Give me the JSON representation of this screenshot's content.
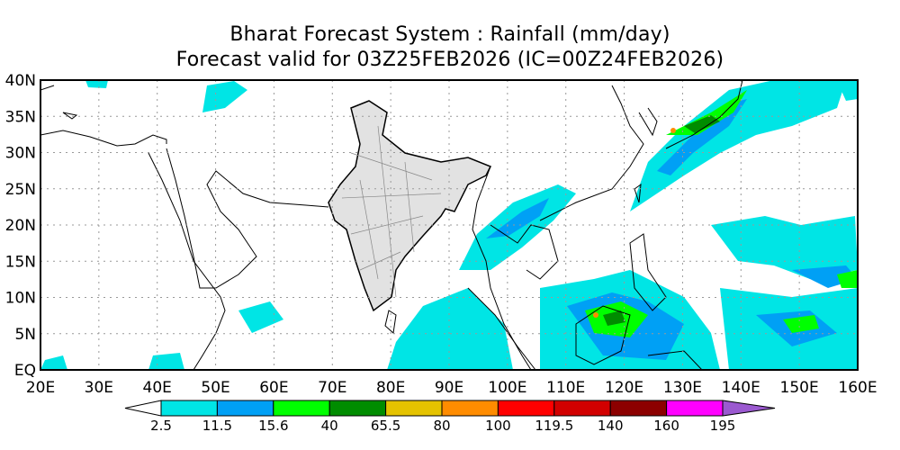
{
  "header": {
    "title": "Bharat Forecast System : Rainfall (mm/day)",
    "subtitle": "Forecast valid for 03Z25FEB2026 (IC=00Z24FEB2026)"
  },
  "map": {
    "lat_labels": [
      "40N",
      "35N",
      "30N",
      "25N",
      "20N",
      "15N",
      "10N",
      "5N",
      "EQ"
    ],
    "lon_labels": [
      "20E",
      "30E",
      "40E",
      "50E",
      "60E",
      "70E",
      "80E",
      "90E",
      "100E",
      "110E",
      "120E",
      "130E",
      "140E",
      "150E",
      "160E"
    ],
    "extent": {
      "lon": [
        20,
        160
      ],
      "lat": [
        0,
        40
      ]
    }
  },
  "colorbar": {
    "labels": [
      "2.5",
      "11.5",
      "15.6",
      "40",
      "65.5",
      "80",
      "100",
      "119.5",
      "140",
      "160",
      "195"
    ],
    "colors": [
      "#00e5e5",
      "#00a0f5",
      "#00ff00",
      "#008c00",
      "#e5c300",
      "#ff8c00",
      "#ff0000",
      "#d20000",
      "#8c0000",
      "#ff00ff"
    ],
    "under_color": "#ffffff",
    "over_color": "#9b59d0"
  }
}
